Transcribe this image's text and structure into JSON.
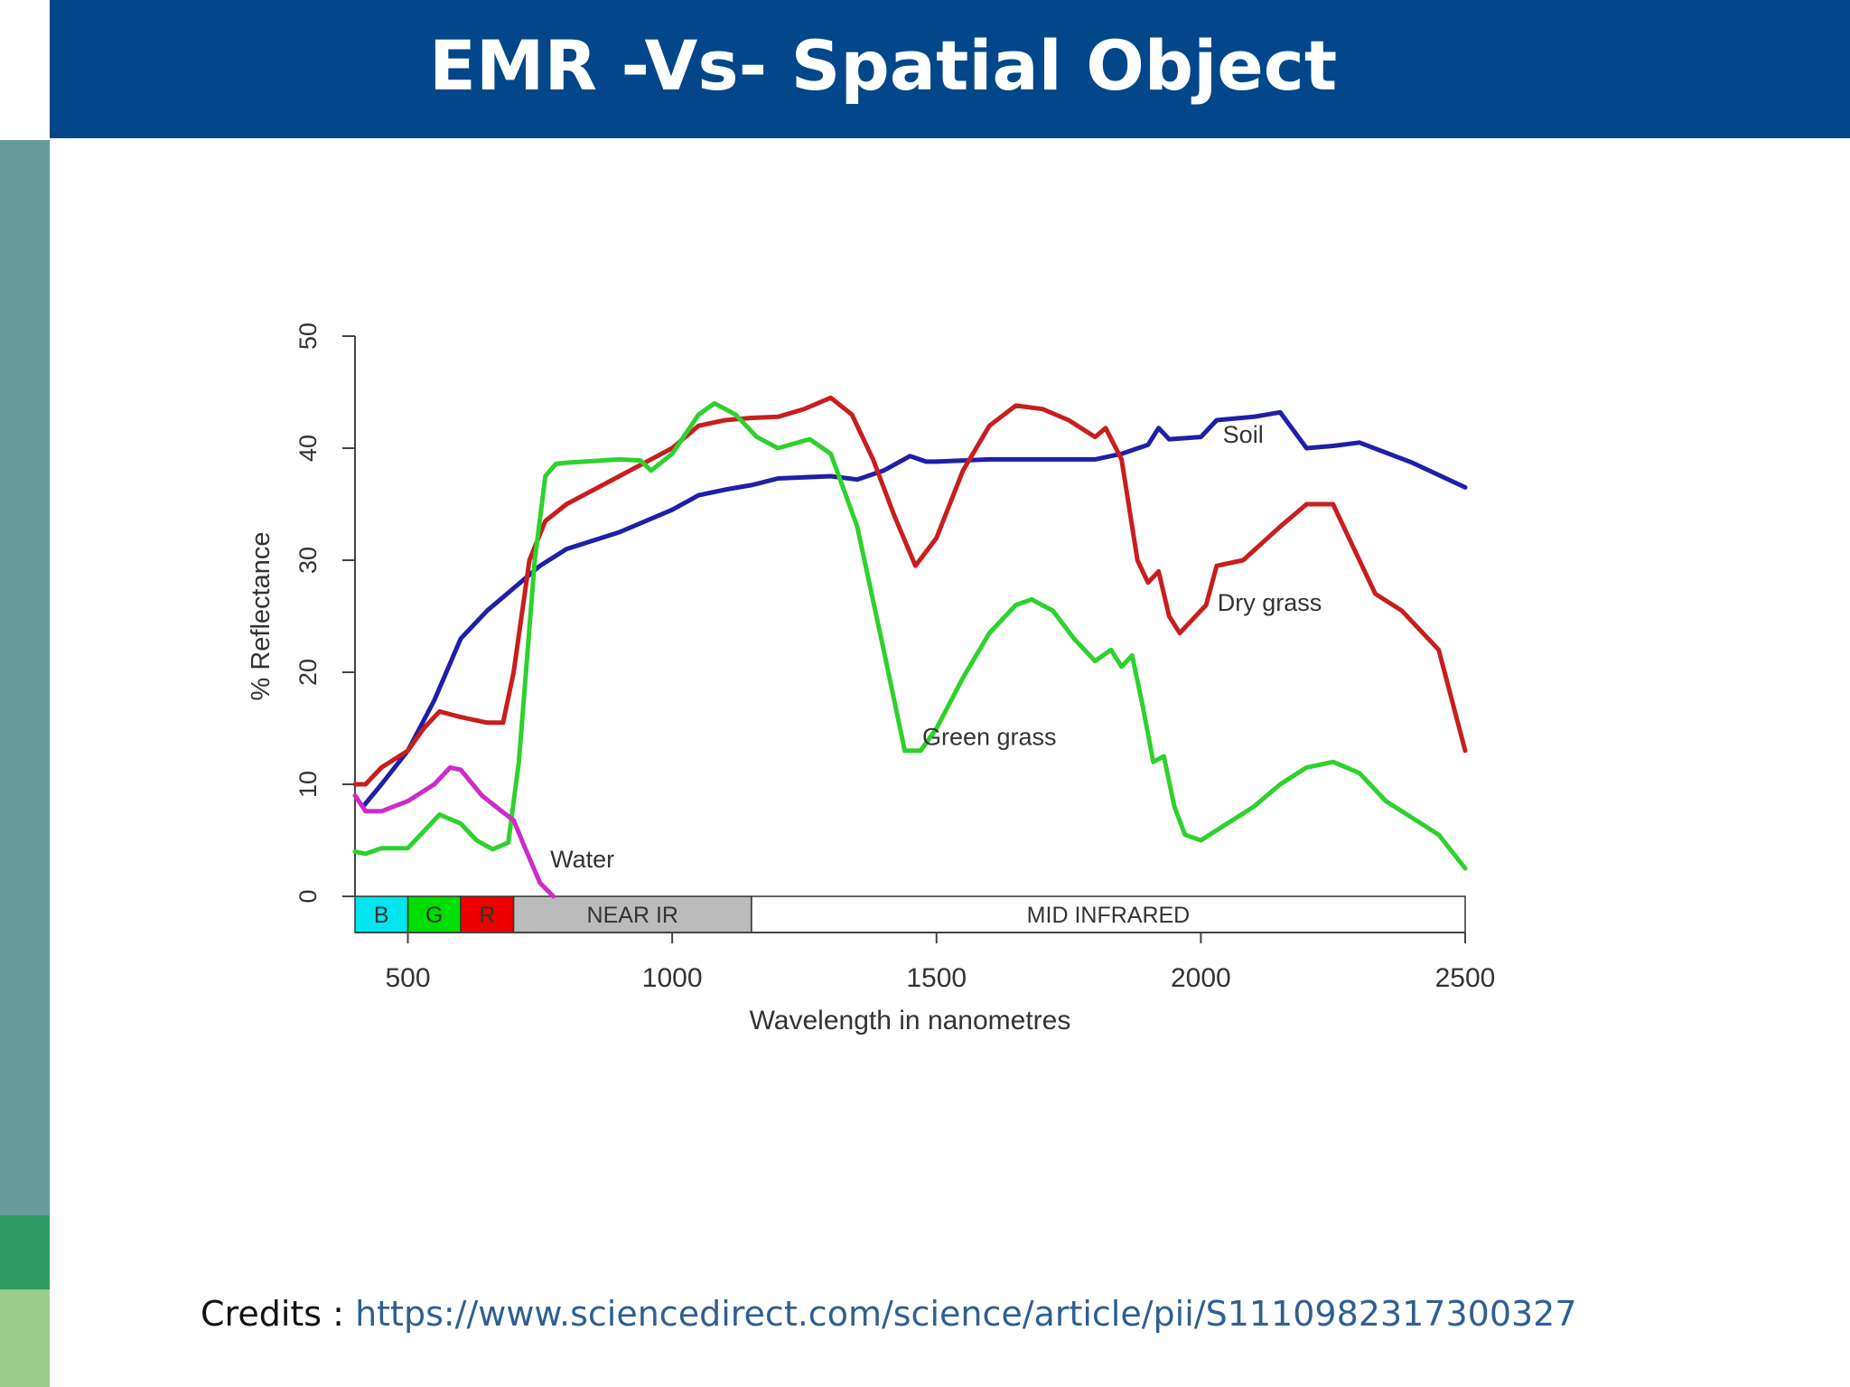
{
  "slide": {
    "title": "EMR -Vs- Spatial Object",
    "credits_label": "Credits :",
    "credits_link": "https://www.sciencedirect.com/science/article/pii/S1110982317300327"
  },
  "colors": {
    "header": "#02478a",
    "sidebar_teal": "#669c99",
    "sidebar_green": "#2e9a5f",
    "sidebar_light": "#9ccc8c",
    "soil": "#1f1fa8",
    "dry_grass": "#c81e1e",
    "green_grass": "#2ed12e",
    "water": "#cc2ccc"
  },
  "chart_data": {
    "type": "line",
    "xlabel": "Wavelength in nanometres",
    "ylabel": "% Reflectance",
    "xlim": [
      400,
      2500
    ],
    "ylim": [
      0,
      50
    ],
    "xticks": [
      500,
      1000,
      1500,
      2000,
      2500
    ],
    "yticks": [
      0,
      10,
      20,
      30,
      40,
      50
    ],
    "grid": false,
    "bands": [
      {
        "label": "B",
        "from": 400,
        "to": 500,
        "color": "#00e5ee"
      },
      {
        "label": "G",
        "from": 500,
        "to": 600,
        "color": "#00dd00"
      },
      {
        "label": "R",
        "from": 600,
        "to": 700,
        "color": "#ee0000"
      },
      {
        "label": "NEAR IR",
        "from": 700,
        "to": 1150,
        "color": "#bbbbbb"
      },
      {
        "label": "MID INFRARED",
        "from": 1150,
        "to": 2500,
        "color": "#ffffff"
      }
    ],
    "series": [
      {
        "name": "Soil",
        "color": "#1f1fa8",
        "points": [
          [
            415,
            8
          ],
          [
            450,
            10
          ],
          [
            500,
            13
          ],
          [
            550,
            17.5
          ],
          [
            600,
            23
          ],
          [
            650,
            25.5
          ],
          [
            700,
            27.5
          ],
          [
            750,
            29.5
          ],
          [
            800,
            31
          ],
          [
            900,
            32.5
          ],
          [
            1000,
            34.5
          ],
          [
            1050,
            35.8
          ],
          [
            1100,
            36.3
          ],
          [
            1150,
            36.7
          ],
          [
            1200,
            37.3
          ],
          [
            1300,
            37.5
          ],
          [
            1350,
            37.2
          ],
          [
            1400,
            38
          ],
          [
            1450,
            39.3
          ],
          [
            1480,
            38.8
          ],
          [
            1500,
            38.8
          ],
          [
            1600,
            39
          ],
          [
            1700,
            39
          ],
          [
            1800,
            39
          ],
          [
            1850,
            39.5
          ],
          [
            1900,
            40.3
          ],
          [
            1920,
            41.8
          ],
          [
            1940,
            40.8
          ],
          [
            2000,
            41
          ],
          [
            2030,
            42.5
          ],
          [
            2100,
            42.8
          ],
          [
            2150,
            43.2
          ],
          [
            2200,
            40
          ],
          [
            2250,
            40.2
          ],
          [
            2300,
            40.5
          ],
          [
            2400,
            38.7
          ],
          [
            2500,
            36.5
          ]
        ]
      },
      {
        "name": "Dry grass",
        "color": "#c81e1e",
        "points": [
          [
            400,
            10
          ],
          [
            420,
            10
          ],
          [
            450,
            11.5
          ],
          [
            500,
            13
          ],
          [
            530,
            15
          ],
          [
            560,
            16.5
          ],
          [
            600,
            16
          ],
          [
            650,
            15.5
          ],
          [
            680,
            15.5
          ],
          [
            700,
            20
          ],
          [
            730,
            30
          ],
          [
            760,
            33.5
          ],
          [
            800,
            35
          ],
          [
            900,
            37.5
          ],
          [
            1000,
            40
          ],
          [
            1050,
            42
          ],
          [
            1100,
            42.5
          ],
          [
            1150,
            42.7
          ],
          [
            1200,
            42.8
          ],
          [
            1250,
            43.5
          ],
          [
            1300,
            44.5
          ],
          [
            1340,
            43
          ],
          [
            1380,
            39
          ],
          [
            1420,
            34
          ],
          [
            1460,
            29.5
          ],
          [
            1500,
            32
          ],
          [
            1550,
            38
          ],
          [
            1600,
            42
          ],
          [
            1650,
            43.8
          ],
          [
            1700,
            43.5
          ],
          [
            1750,
            42.5
          ],
          [
            1800,
            41
          ],
          [
            1820,
            41.8
          ],
          [
            1850,
            39
          ],
          [
            1880,
            30
          ],
          [
            1900,
            28
          ],
          [
            1920,
            29
          ],
          [
            1940,
            25
          ],
          [
            1960,
            23.5
          ],
          [
            1980,
            24.5
          ],
          [
            2010,
            26
          ],
          [
            2030,
            29.5
          ],
          [
            2080,
            30
          ],
          [
            2150,
            33
          ],
          [
            2200,
            35
          ],
          [
            2250,
            35
          ],
          [
            2280,
            32
          ],
          [
            2330,
            27
          ],
          [
            2380,
            25.5
          ],
          [
            2450,
            22
          ],
          [
            2500,
            13
          ]
        ]
      },
      {
        "name": "Green grass",
        "color": "#2ed12e",
        "points": [
          [
            400,
            4
          ],
          [
            420,
            3.8
          ],
          [
            450,
            4.3
          ],
          [
            500,
            4.3
          ],
          [
            560,
            7.3
          ],
          [
            600,
            6.5
          ],
          [
            630,
            5
          ],
          [
            660,
            4.2
          ],
          [
            690,
            4.8
          ],
          [
            710,
            12
          ],
          [
            740,
            30
          ],
          [
            760,
            37.5
          ],
          [
            780,
            38.6
          ],
          [
            800,
            38.7
          ],
          [
            900,
            39
          ],
          [
            940,
            38.9
          ],
          [
            960,
            38
          ],
          [
            1000,
            39.5
          ],
          [
            1050,
            43
          ],
          [
            1080,
            44
          ],
          [
            1120,
            43
          ],
          [
            1160,
            41
          ],
          [
            1200,
            40
          ],
          [
            1260,
            40.8
          ],
          [
            1300,
            39.5
          ],
          [
            1350,
            33
          ],
          [
            1400,
            22
          ],
          [
            1440,
            13
          ],
          [
            1470,
            13
          ],
          [
            1500,
            15
          ],
          [
            1550,
            19.5
          ],
          [
            1600,
            23.5
          ],
          [
            1650,
            26
          ],
          [
            1680,
            26.5
          ],
          [
            1720,
            25.5
          ],
          [
            1760,
            23
          ],
          [
            1800,
            21
          ],
          [
            1830,
            22
          ],
          [
            1850,
            20.5
          ],
          [
            1870,
            21.5
          ],
          [
            1890,
            17
          ],
          [
            1910,
            12
          ],
          [
            1930,
            12.5
          ],
          [
            1950,
            8
          ],
          [
            1970,
            5.5
          ],
          [
            2000,
            5
          ],
          [
            2050,
            6.5
          ],
          [
            2100,
            8
          ],
          [
            2150,
            10
          ],
          [
            2200,
            11.5
          ],
          [
            2250,
            12
          ],
          [
            2300,
            11
          ],
          [
            2350,
            8.5
          ],
          [
            2400,
            7
          ],
          [
            2450,
            5.5
          ],
          [
            2500,
            2.5
          ]
        ]
      },
      {
        "name": "Water",
        "color": "#cc2ccc",
        "points": [
          [
            400,
            9
          ],
          [
            420,
            7.6
          ],
          [
            450,
            7.6
          ],
          [
            500,
            8.5
          ],
          [
            550,
            10
          ],
          [
            580,
            11.5
          ],
          [
            600,
            11.3
          ],
          [
            640,
            9
          ],
          [
            680,
            7.5
          ],
          [
            700,
            6.8
          ],
          [
            720,
            4.5
          ],
          [
            750,
            1.2
          ],
          [
            775,
            0
          ]
        ]
      }
    ],
    "annotations": [
      {
        "text": "Soil",
        "x": 2080,
        "y": 40.5
      },
      {
        "text": "Dry grass",
        "x": 2130,
        "y": 25.5
      },
      {
        "text": "Green grass",
        "x": 1600,
        "y": 13.5
      },
      {
        "text": "Water",
        "x": 830,
        "y": 2.6
      }
    ]
  }
}
